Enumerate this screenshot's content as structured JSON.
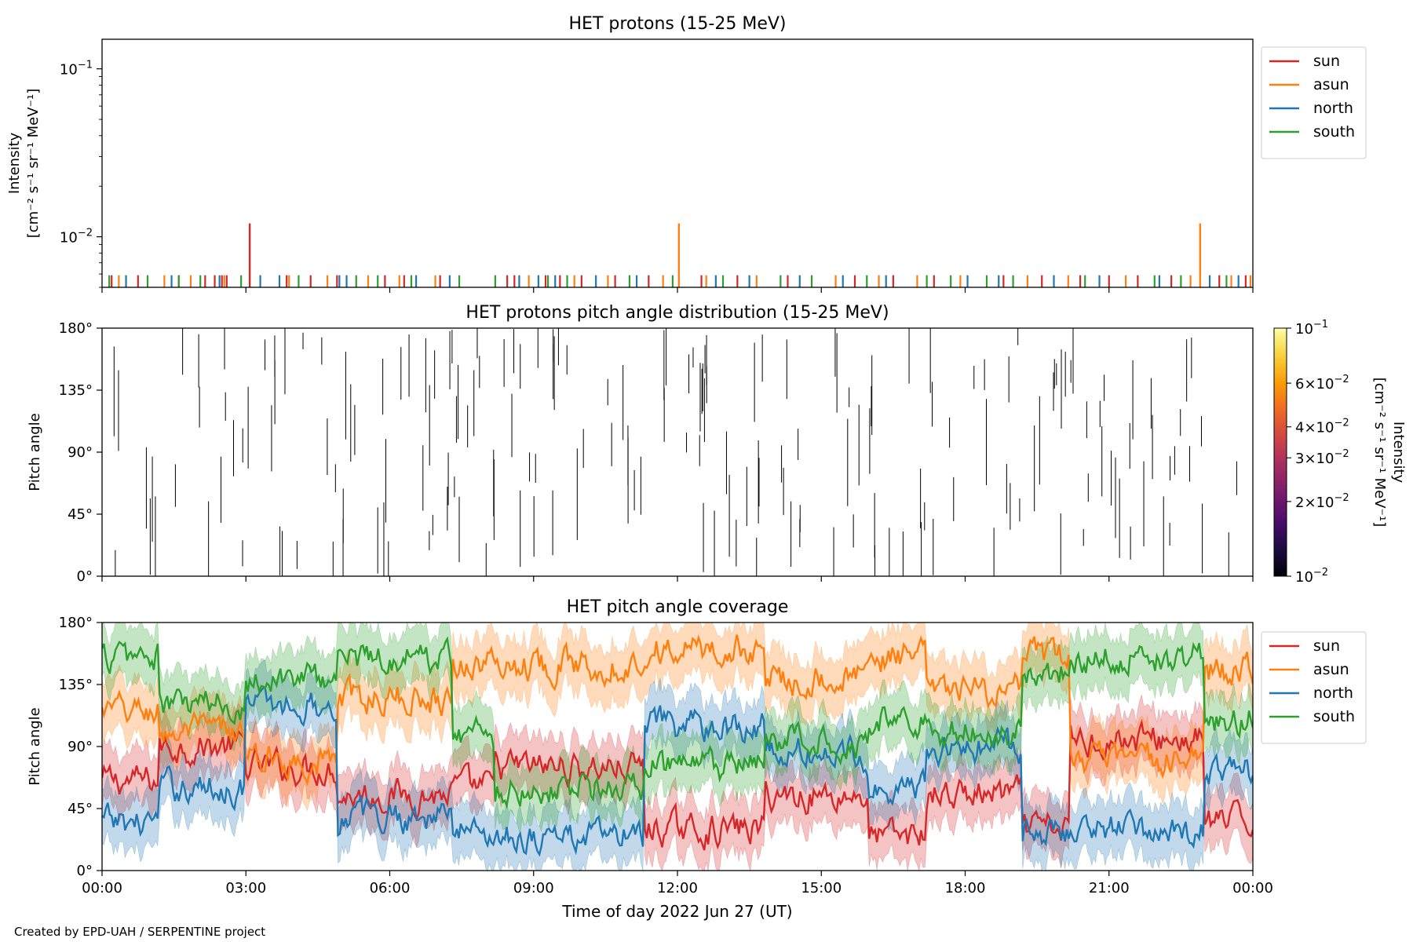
{
  "footer": "Created by EPD-UAH / SERPENTINE project",
  "xaxis": {
    "label": "Time of day 2022 Jun 27 (UT)",
    "ticks": [
      "00:00",
      "03:00",
      "06:00",
      "09:00",
      "12:00",
      "15:00",
      "18:00",
      "21:00",
      "00:00"
    ],
    "range_hours": [
      0,
      24
    ]
  },
  "chart_data": [
    {
      "type": "line",
      "panel": "intensity",
      "title": "HET protons (15-25 MeV)",
      "ylabel_line1": "Intensity",
      "ylabel_line2": "[cm⁻² s⁻¹ sr⁻¹ MeV⁻¹]",
      "yscale": "log",
      "ylim": [
        0.005,
        0.15
      ],
      "yticks": [
        {
          "value": 0.01,
          "base": "10",
          "exp": "−2"
        },
        {
          "value": 0.1,
          "base": "10",
          "exp": "−1"
        }
      ],
      "baseline": 0.005,
      "spike_floor_value": 0.0059,
      "legend_position": "upper-right-outside",
      "series": [
        {
          "name": "sun",
          "color": "#d62728",
          "spike_hours": [
            0.2,
            0.75,
            1.6,
            2.15,
            2.35,
            2.5,
            2.6,
            3.85,
            4.35,
            4.9,
            5.9,
            6.3,
            7.05,
            8.45,
            8.6,
            9.25,
            9.55,
            10.0,
            10.7,
            11.4,
            12.5,
            13.25,
            14.3,
            15.7,
            16.5,
            17.35,
            18.8,
            19.6,
            20.4,
            21.0,
            21.6,
            22.3,
            23.3,
            23.85
          ],
          "big_spikes": [
            {
              "hour": 3.08,
              "value": 0.012
            }
          ]
        },
        {
          "name": "asun",
          "color": "#ff7f0e",
          "spike_hours": [
            0.35,
            1.3,
            1.85,
            2.55,
            3.9,
            4.7,
            5.55,
            6.2,
            6.95,
            8.9,
            9.85,
            10.55,
            11.7,
            12.6,
            13.65,
            15.3,
            16.2,
            17.0,
            17.9,
            19.3,
            20.15,
            21.35,
            22.7,
            23.55,
            23.95
          ],
          "big_spikes": [
            {
              "hour": 12.03,
              "value": 0.012
            },
            {
              "hour": 22.9,
              "value": 0.012
            }
          ]
        },
        {
          "name": "north",
          "color": "#1f77b4",
          "spike_hours": [
            0.5,
            1.45,
            2.45,
            3.3,
            3.7,
            4.95,
            5.1,
            6.55,
            7.25,
            8.7,
            9.1,
            9.45,
            10.3,
            11.15,
            12.8,
            13.5,
            14.55,
            15.45,
            16.35,
            18.05,
            18.7,
            19.85,
            20.8,
            22.05,
            23.1,
            23.7
          ],
          "big_spikes": []
        },
        {
          "name": "south",
          "color": "#2ca02c",
          "spike_hours": [
            0.15,
            0.95,
            1.6,
            2.05,
            2.9,
            4.1,
            5.3,
            5.75,
            6.45,
            7.45,
            8.2,
            9.3,
            9.7,
            11.0,
            11.9,
            12.95,
            14.15,
            14.8,
            15.95,
            17.2,
            17.7,
            18.45,
            19.0,
            20.5,
            21.95,
            22.5,
            23.45
          ],
          "big_spikes": []
        }
      ]
    },
    {
      "type": "heatmap",
      "panel": "pad",
      "title": "HET protons pitch angle distribution (15-25 MeV)",
      "ylabel": "Pitch angle",
      "ylim": [
        0,
        180
      ],
      "yticks": [
        "0°",
        "45°",
        "90°",
        "135°",
        "180°"
      ],
      "colorbar": {
        "label_line1": "Intensity",
        "label_line2": "[cm⁻² s⁻¹ sr⁻¹ MeV⁻¹]",
        "scale": "log",
        "range": [
          0.01,
          0.1
        ],
        "stops": [
          "#000004",
          "#1b0c41",
          "#4a0c6b",
          "#781c6d",
          "#a52c60",
          "#cf4446",
          "#ed6925",
          "#fb9b06",
          "#f7d13d",
          "#fcffa4"
        ],
        "ticks": [
          {
            "value": 0.01,
            "mant": "",
            "exp": "−2"
          },
          {
            "value": 0.02,
            "mant": "2×",
            "exp": "−2"
          },
          {
            "value": 0.03,
            "mant": "3×",
            "exp": "−2"
          },
          {
            "value": 0.04,
            "mant": "4×",
            "exp": "−2"
          },
          {
            "value": 0.06,
            "mant": "6×",
            "exp": "−2"
          },
          {
            "value": 0.1,
            "mant": "",
            "exp": "−1"
          }
        ]
      },
      "segment_count": 190,
      "segment_color": "#000000"
    },
    {
      "type": "line",
      "panel": "coverage",
      "title": "HET pitch angle coverage",
      "ylabel": "Pitch angle",
      "ylim": [
        0,
        180
      ],
      "yticks": [
        "0°",
        "45°",
        "90°",
        "135°",
        "180°"
      ],
      "legend_position": "upper-right-outside",
      "band_halfwidth_deg": 20,
      "interval_hours": [
        0,
        1.2,
        3.0,
        4.9,
        7.3,
        8.2,
        11.3,
        13.8,
        16.0,
        17.2,
        19.2,
        20.2,
        23.0,
        24.0
      ],
      "series": [
        {
          "name": "sun",
          "color": "#d62728",
          "levels": [
            65,
            90,
            75,
            55,
            60,
            75,
            30,
            55,
            25,
            55,
            30,
            95,
            35
          ]
        },
        {
          "name": "asun",
          "color": "#ff7f0e",
          "levels": [
            115,
            100,
            80,
            125,
            150,
            150,
            160,
            140,
            155,
            130,
            155,
            80,
            145
          ]
        },
        {
          "name": "north",
          "color": "#1f77b4",
          "levels": [
            35,
            60,
            120,
            40,
            30,
            25,
            105,
            85,
            60,
            90,
            30,
            30,
            70
          ]
        },
        {
          "name": "south",
          "color": "#2ca02c",
          "levels": [
            155,
            120,
            140,
            155,
            100,
            60,
            75,
            95,
            110,
            100,
            145,
            155,
            110
          ]
        }
      ]
    }
  ]
}
